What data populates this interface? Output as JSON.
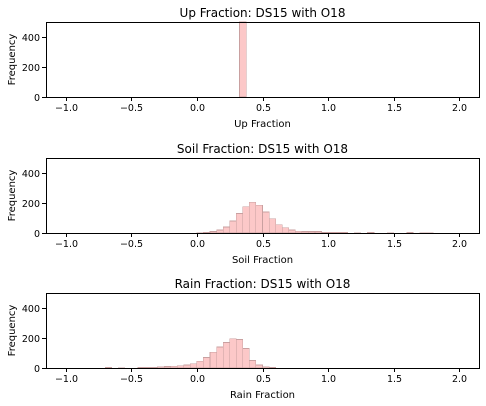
{
  "chart_data": [
    {
      "type": "bar",
      "title": "Up Fraction: DS15 with O18",
      "xlabel": "Up Fraction",
      "ylabel": "Frequency",
      "xlim": [
        -1.15,
        2.15
      ],
      "ylim": [
        0,
        500
      ],
      "xticks": [
        "-1.0",
        "-0.5",
        "0.0",
        "0.5",
        "1.0",
        "1.5",
        "2.0"
      ],
      "xtick_values": [
        -1.0,
        -0.5,
        0.0,
        0.5,
        1.0,
        1.5,
        2.0
      ],
      "yticks": [
        "0",
        "200",
        "400"
      ],
      "ytick_values": [
        0,
        200,
        400
      ],
      "bar_color": "#fcc8c8",
      "bin_width": 0.05,
      "bins": [
        {
          "x": 0.325,
          "v": 500
        }
      ]
    },
    {
      "type": "bar",
      "title": "Soil Fraction: DS15 with O18",
      "xlabel": "Soil Fraction",
      "ylabel": "Frequency",
      "xlim": [
        -1.15,
        2.15
      ],
      "ylim": [
        0,
        500
      ],
      "xticks": [
        "-1.0",
        "-0.5",
        "0.0",
        "0.5",
        "1.0",
        "1.5",
        "2.0"
      ],
      "xtick_values": [
        -1.0,
        -0.5,
        0.0,
        0.5,
        1.0,
        1.5,
        2.0
      ],
      "yticks": [
        "0",
        "200",
        "400"
      ],
      "ytick_values": [
        0,
        200,
        400
      ],
      "bar_color": "#fcc8c8",
      "bin_width": 0.05,
      "bins": [
        {
          "x": 0.0,
          "v": 2
        },
        {
          "x": 0.05,
          "v": 5
        },
        {
          "x": 0.1,
          "v": 10
        },
        {
          "x": 0.15,
          "v": 20
        },
        {
          "x": 0.2,
          "v": 40
        },
        {
          "x": 0.25,
          "v": 80
        },
        {
          "x": 0.3,
          "v": 130
        },
        {
          "x": 0.35,
          "v": 175
        },
        {
          "x": 0.4,
          "v": 205
        },
        {
          "x": 0.45,
          "v": 185
        },
        {
          "x": 0.5,
          "v": 140
        },
        {
          "x": 0.55,
          "v": 95
        },
        {
          "x": 0.6,
          "v": 55
        },
        {
          "x": 0.65,
          "v": 35
        },
        {
          "x": 0.7,
          "v": 20
        },
        {
          "x": 0.75,
          "v": 12
        },
        {
          "x": 0.8,
          "v": 10
        },
        {
          "x": 0.85,
          "v": 10
        },
        {
          "x": 0.9,
          "v": 10
        },
        {
          "x": 0.95,
          "v": 5
        },
        {
          "x": 1.0,
          "v": 5
        },
        {
          "x": 1.05,
          "v": 4
        },
        {
          "x": 1.1,
          "v": 4
        },
        {
          "x": 1.2,
          "v": 3
        },
        {
          "x": 1.3,
          "v": 5
        },
        {
          "x": 1.45,
          "v": 2
        },
        {
          "x": 1.6,
          "v": 4
        },
        {
          "x": 1.7,
          "v": 3
        },
        {
          "x": 1.75,
          "v": 2
        }
      ]
    },
    {
      "type": "bar",
      "title": "Rain Fraction: DS15 with O18",
      "xlabel": "Rain Fraction",
      "ylabel": "Frequency",
      "xlim": [
        -1.15,
        2.15
      ],
      "ylim": [
        0,
        500
      ],
      "xticks": [
        "-1.0",
        "-0.5",
        "0.0",
        "0.5",
        "1.0",
        "1.5",
        "2.0"
      ],
      "xtick_values": [
        -1.0,
        -0.5,
        0.0,
        0.5,
        1.0,
        1.5,
        2.0
      ],
      "yticks": [
        "0",
        "200",
        "400"
      ],
      "ytick_values": [
        0,
        200,
        400
      ],
      "bar_color": "#fcc8c8",
      "bin_width": 0.05,
      "bins": [
        {
          "x": -0.7,
          "v": 3
        },
        {
          "x": -0.6,
          "v": 2
        },
        {
          "x": -0.45,
          "v": 3
        },
        {
          "x": -0.4,
          "v": 5
        },
        {
          "x": -0.35,
          "v": 5
        },
        {
          "x": -0.3,
          "v": 8
        },
        {
          "x": -0.25,
          "v": 10
        },
        {
          "x": -0.2,
          "v": 12
        },
        {
          "x": -0.15,
          "v": 15
        },
        {
          "x": -0.1,
          "v": 20
        },
        {
          "x": -0.05,
          "v": 28
        },
        {
          "x": 0.0,
          "v": 45
        },
        {
          "x": 0.05,
          "v": 70
        },
        {
          "x": 0.1,
          "v": 105
        },
        {
          "x": 0.15,
          "v": 140
        },
        {
          "x": 0.2,
          "v": 170
        },
        {
          "x": 0.25,
          "v": 195
        },
        {
          "x": 0.3,
          "v": 190
        },
        {
          "x": 0.35,
          "v": 130
        },
        {
          "x": 0.4,
          "v": 50
        },
        {
          "x": 0.45,
          "v": 20
        },
        {
          "x": 0.5,
          "v": 8
        },
        {
          "x": 0.55,
          "v": 3
        }
      ]
    }
  ]
}
